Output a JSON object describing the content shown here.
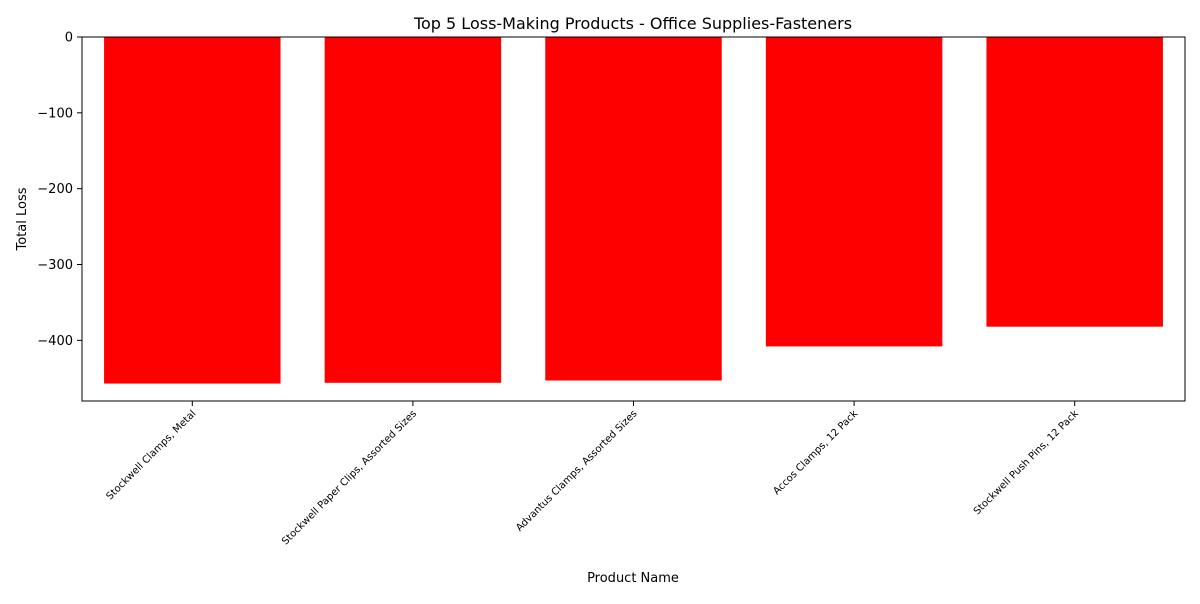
{
  "chart_data": {
    "type": "bar",
    "title": "Top 5 Loss-Making Products - Office Supplies-Fasteners",
    "xlabel": "Product Name",
    "ylabel": "Total Loss",
    "categories": [
      "Stockwell Clamps, Metal",
      "Stockwell Paper Clips, Assorted Sizes",
      "Advantus Clamps, Assorted Sizes",
      "Accos Clamps, 12 Pack",
      "Stockwell Push Pins, 12 Pack"
    ],
    "values": [
      -457,
      -456,
      -453,
      -408,
      -382
    ],
    "ylim": [
      -480,
      0
    ],
    "yticks": [
      0,
      -100,
      -200,
      -300,
      -400
    ],
    "ytick_labels": [
      "0",
      "−100",
      "−200",
      "−300",
      "−400"
    ],
    "bar_color": "#ff0000",
    "grid": false,
    "legend": "none"
  }
}
